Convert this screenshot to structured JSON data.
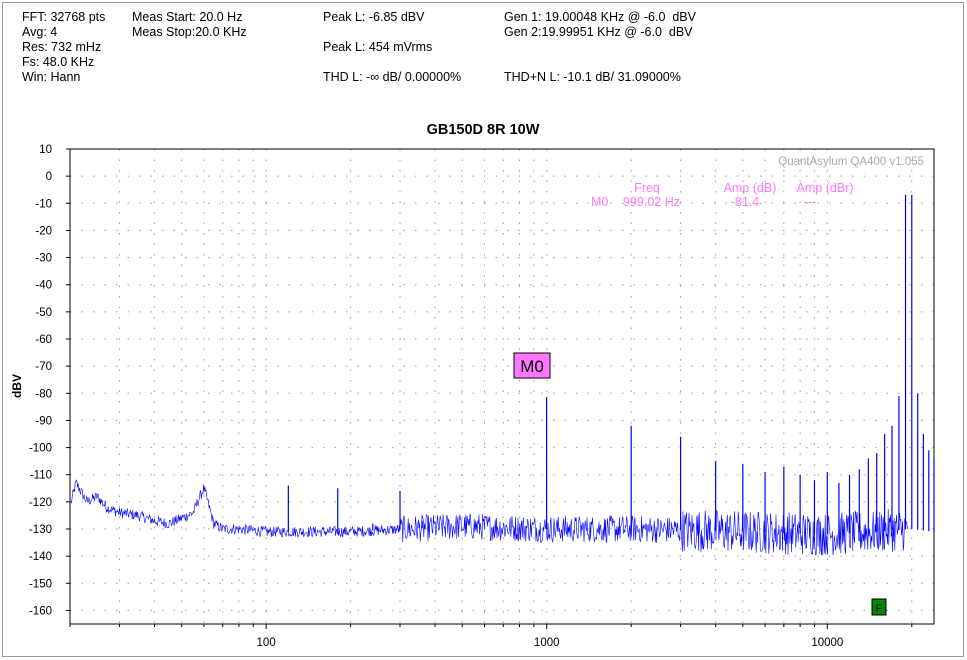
{
  "header": {
    "fft": "FFT: 32768 pts",
    "avg": "Avg: 4",
    "res": "Res: 732 mHz",
    "fs": "Fs: 48.0 KHz",
    "win": "Win: Hann",
    "meas_start": "Meas Start: 20.0 Hz",
    "meas_stop": "Meas Stop:20.0 KHz",
    "peak_dbv": "Peak L: -6.85 dBV",
    "peak_mv": "Peak L: 454 mVrms",
    "thd": "THD L: -∞ dB/ 0.00000%",
    "gen1": "Gen 1: 19.00048 KHz @ -6.0  dBV",
    "gen2": "Gen 2:19.99951 KHz @ -6.0  dBV",
    "thdn": "THD+N L: -10.1 dB/ 31.09000%"
  },
  "brand": "QuantAsylum QA400 v1.055",
  "marker_table": {
    "freq_header": "Freq",
    "amp_db_header": "Amp (dB)",
    "amp_dbr_header": "Amp (dBr)",
    "marker_name": "M0",
    "marker_freq": "999.02 Hz",
    "marker_amp_db": "-81.4",
    "marker_amp_dbr": "---"
  },
  "marker_label": "M0",
  "f_flag": "F",
  "colors": {
    "trace": "#0000ff",
    "marker_text": "#ff77ff",
    "marker_box": "#ff77ff",
    "flag": "#008800"
  },
  "chart_data": {
    "type": "line",
    "title": "GB150D 8R 10W",
    "xlabel": "",
    "ylabel": "dBV",
    "xscale": "log",
    "xlim": [
      20,
      24000
    ],
    "ylim": [
      -165,
      10
    ],
    "x_tick_labels": [
      {
        "value": 100,
        "label": "100"
      },
      {
        "value": 1000,
        "label": "1000"
      },
      {
        "value": 10000,
        "label": "10000"
      }
    ],
    "y_ticks": [
      10,
      0,
      -10,
      -20,
      -30,
      -40,
      -50,
      -60,
      -70,
      -80,
      -90,
      -100,
      -110,
      -120,
      -130,
      -140,
      -150,
      -160
    ],
    "grid": true,
    "noise_floor": [
      [
        20,
        -122
      ],
      [
        21,
        -113
      ],
      [
        23,
        -120
      ],
      [
        25,
        -118
      ],
      [
        27,
        -122
      ],
      [
        30,
        -124
      ],
      [
        35,
        -125
      ],
      [
        40,
        -127
      ],
      [
        45,
        -128
      ],
      [
        50,
        -126
      ],
      [
        55,
        -124
      ],
      [
        57,
        -120
      ],
      [
        60,
        -115
      ],
      [
        62,
        -120
      ],
      [
        65,
        -128
      ],
      [
        70,
        -130
      ],
      [
        80,
        -130
      ],
      [
        100,
        -131
      ],
      [
        200,
        -131
      ],
      [
        500,
        -129
      ],
      [
        1000,
        -130
      ],
      [
        2000,
        -130
      ],
      [
        5000,
        -131
      ],
      [
        10000,
        -132
      ],
      [
        15000,
        -131
      ],
      [
        20000,
        -130
      ],
      [
        24000,
        -131
      ]
    ],
    "spikes": [
      {
        "x": 60,
        "y": -115
      },
      {
        "x": 120,
        "y": -114
      },
      {
        "x": 180,
        "y": -115
      },
      {
        "x": 240,
        "y": -128
      },
      {
        "x": 300,
        "y": -116
      },
      {
        "x": 360,
        "y": -127
      },
      {
        "x": 999,
        "y": -81.4
      },
      {
        "x": 2000,
        "y": -92
      },
      {
        "x": 3000,
        "y": -96
      },
      {
        "x": 4000,
        "y": -105
      },
      {
        "x": 5000,
        "y": -106
      },
      {
        "x": 6000,
        "y": -109
      },
      {
        "x": 7000,
        "y": -107
      },
      {
        "x": 8000,
        "y": -110
      },
      {
        "x": 9000,
        "y": -112
      },
      {
        "x": 10000,
        "y": -109
      },
      {
        "x": 11000,
        "y": -113
      },
      {
        "x": 12000,
        "y": -110
      },
      {
        "x": 13000,
        "y": -108
      },
      {
        "x": 14000,
        "y": -104
      },
      {
        "x": 15000,
        "y": -102
      },
      {
        "x": 16000,
        "y": -95
      },
      {
        "x": 17000,
        "y": -92
      },
      {
        "x": 18000,
        "y": -81
      },
      {
        "x": 19000,
        "y": -6.85
      },
      {
        "x": 20000,
        "y": -6.9
      },
      {
        "x": 21000,
        "y": -80
      },
      {
        "x": 22000,
        "y": -95
      },
      {
        "x": 23000,
        "y": -101
      },
      {
        "x": 24000,
        "y": -104
      }
    ]
  }
}
